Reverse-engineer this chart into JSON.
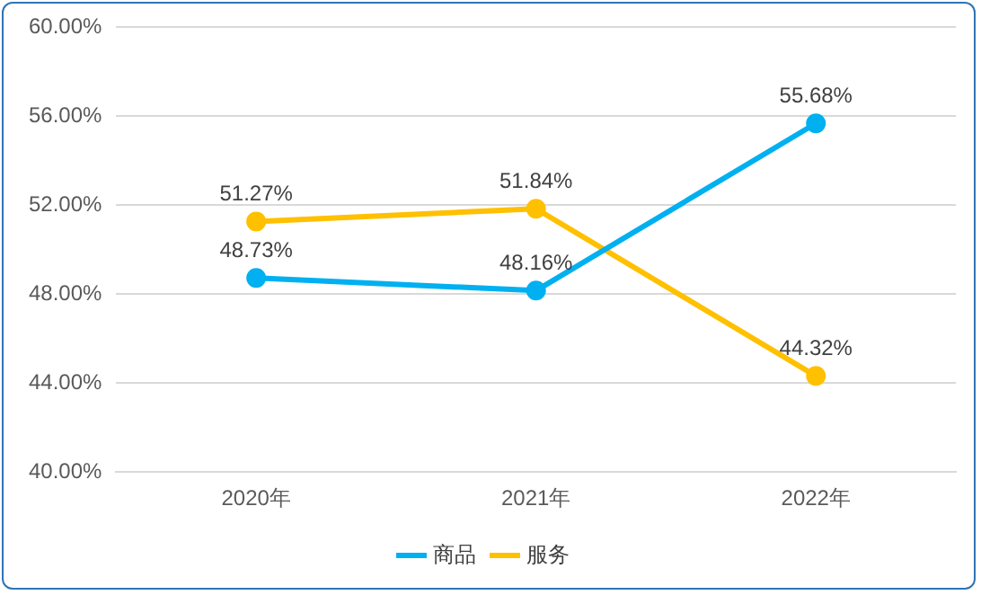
{
  "chart_data": {
    "type": "line",
    "categories": [
      "2020年",
      "2021年",
      "2022年"
    ],
    "series": [
      {
        "name": "商品",
        "color": "#00b0f0",
        "values": [
          48.73,
          48.16,
          55.68
        ],
        "value_labels": [
          "48.73%",
          "48.16%",
          "55.68%"
        ]
      },
      {
        "name": "服务",
        "color": "#ffc000",
        "values": [
          51.27,
          51.84,
          44.32
        ],
        "value_labels": [
          "51.27%",
          "51.84%",
          "44.32%"
        ]
      }
    ],
    "ylim": [
      40,
      60
    ],
    "yticks": [
      {
        "value": 40,
        "label": "40.00%"
      },
      {
        "value": 44,
        "label": "44.00%"
      },
      {
        "value": 48,
        "label": "48.00%"
      },
      {
        "value": 52,
        "label": "52.00%"
      },
      {
        "value": 56,
        "label": "56.00%"
      },
      {
        "value": 60,
        "label": "60.00%"
      }
    ],
    "grid": "y",
    "legend": "bottom",
    "marker": "circle",
    "line_style": "solid"
  }
}
